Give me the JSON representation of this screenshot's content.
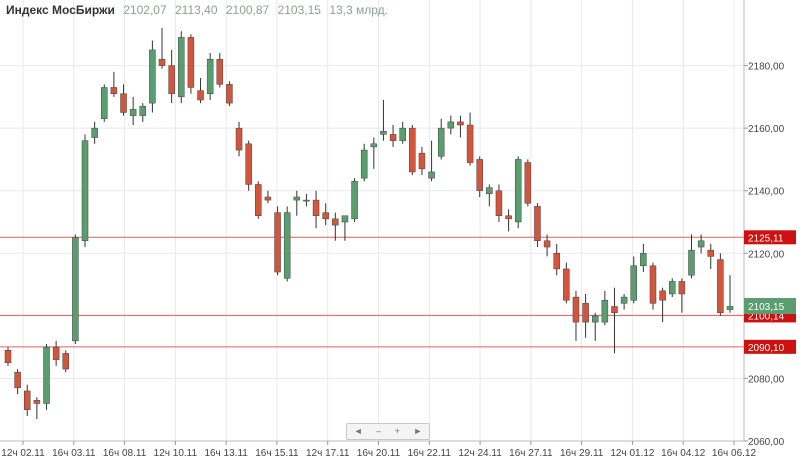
{
  "header": {
    "name": "Индекс МосБиржи",
    "open": "2102,07",
    "high": "2113,40",
    "low": "2100,87",
    "close": "2103,15",
    "volume": "13,3 млрд."
  },
  "navigator": {
    "left_icon": "◄",
    "zoom_out": "–",
    "zoom_in": "+",
    "right_icon": "►"
  },
  "colors": {
    "up": "#5a9e6f",
    "down": "#d2553c",
    "level_line": "#e06060",
    "level_label_bg": "#cc1111",
    "last_price_bg": "#5a9e6f",
    "grid": "#e8e8e8",
    "axis_text": "#444444"
  },
  "chart_data": {
    "type": "candlestick",
    "title": "Индекс МосБиржи",
    "ylim": [
      2060,
      2200
    ],
    "y_ticks": [
      "2060,00",
      "2080,00",
      "2100,00",
      "2120,00",
      "2140,00",
      "2160,00",
      "2180,00"
    ],
    "x_tick_labels": [
      "12ч 02.11",
      "16ч 03.11",
      "16ч 08.11",
      "12ч 10.11",
      "16ч 13.11",
      "16ч 15.11",
      "12ч 17.11",
      "16ч 20.11",
      "16ч 22.11",
      "12ч 24.11",
      "16ч 27.11",
      "16ч 29.11",
      "12ч 01.12",
      "16ч 04.12",
      "16ч 06.12"
    ],
    "grid": true,
    "horizontal_levels": [
      {
        "value": 2125.11,
        "label": "2125,11"
      },
      {
        "value": 2100.14,
        "label": "2100,14"
      },
      {
        "value": 2090.1,
        "label": "2090,10"
      }
    ],
    "last_price": {
      "value": 2103.15,
      "label": "2103,15"
    },
    "candles": [
      {
        "o": 2089,
        "h": 2090,
        "l": 2084,
        "c": 2085
      },
      {
        "o": 2082,
        "h": 2083,
        "l": 2075,
        "c": 2077
      },
      {
        "o": 2076,
        "h": 2078,
        "l": 2068,
        "c": 2070
      },
      {
        "o": 2073,
        "h": 2074,
        "l": 2067,
        "c": 2072
      },
      {
        "o": 2072,
        "h": 2091,
        "l": 2070,
        "c": 2090
      },
      {
        "o": 2090,
        "h": 2092,
        "l": 2084,
        "c": 2086
      },
      {
        "o": 2088,
        "h": 2089,
        "l": 2082,
        "c": 2083
      },
      {
        "o": 2092,
        "h": 2126,
        "l": 2091,
        "c": 2125
      },
      {
        "o": 2124,
        "h": 2158,
        "l": 2122,
        "c": 2156
      },
      {
        "o": 2157,
        "h": 2162,
        "l": 2155,
        "c": 2160
      },
      {
        "o": 2163,
        "h": 2174,
        "l": 2162,
        "c": 2173
      },
      {
        "o": 2173,
        "h": 2178,
        "l": 2170,
        "c": 2171
      },
      {
        "o": 2171,
        "h": 2174,
        "l": 2164,
        "c": 2165
      },
      {
        "o": 2164,
        "h": 2170,
        "l": 2161,
        "c": 2166
      },
      {
        "o": 2164,
        "h": 2168,
        "l": 2162,
        "c": 2167
      },
      {
        "o": 2168,
        "h": 2188,
        "l": 2165,
        "c": 2185
      },
      {
        "o": 2182,
        "h": 2192,
        "l": 2179,
        "c": 2180
      },
      {
        "o": 2180,
        "h": 2185,
        "l": 2168,
        "c": 2171
      },
      {
        "o": 2170,
        "h": 2191,
        "l": 2168,
        "c": 2189
      },
      {
        "o": 2189,
        "h": 2190,
        "l": 2171,
        "c": 2173
      },
      {
        "o": 2172,
        "h": 2176,
        "l": 2168,
        "c": 2169
      },
      {
        "o": 2171,
        "h": 2184,
        "l": 2169,
        "c": 2182
      },
      {
        "o": 2182,
        "h": 2184,
        "l": 2173,
        "c": 2174
      },
      {
        "o": 2174,
        "h": 2175,
        "l": 2167,
        "c": 2168
      },
      {
        "o": 2160,
        "h": 2162,
        "l": 2151,
        "c": 2153
      },
      {
        "o": 2155,
        "h": 2156,
        "l": 2140,
        "c": 2142
      },
      {
        "o": 2142,
        "h": 2143,
        "l": 2131,
        "c": 2132
      },
      {
        "o": 2138,
        "h": 2140,
        "l": 2136,
        "c": 2137
      },
      {
        "o": 2133,
        "h": 2135,
        "l": 2113,
        "c": 2114
      },
      {
        "o": 2112,
        "h": 2135,
        "l": 2111,
        "c": 2133
      },
      {
        "o": 2137,
        "h": 2140,
        "l": 2132,
        "c": 2138
      },
      {
        "o": 2137,
        "h": 2139,
        "l": 2135,
        "c": 2137
      },
      {
        "o": 2137,
        "h": 2140,
        "l": 2128,
        "c": 2132
      },
      {
        "o": 2133,
        "h": 2136,
        "l": 2129,
        "c": 2131
      },
      {
        "o": 2131,
        "h": 2133,
        "l": 2124,
        "c": 2129
      },
      {
        "o": 2130,
        "h": 2132,
        "l": 2124,
        "c": 2132
      },
      {
        "o": 2131,
        "h": 2144,
        "l": 2130,
        "c": 2143
      },
      {
        "o": 2144,
        "h": 2155,
        "l": 2143,
        "c": 2153
      },
      {
        "o": 2154,
        "h": 2157,
        "l": 2147,
        "c": 2155
      },
      {
        "o": 2158,
        "h": 2169,
        "l": 2156,
        "c": 2159
      },
      {
        "o": 2158,
        "h": 2161,
        "l": 2154,
        "c": 2156
      },
      {
        "o": 2156,
        "h": 2162,
        "l": 2155,
        "c": 2160
      },
      {
        "o": 2160,
        "h": 2161,
        "l": 2145,
        "c": 2146
      },
      {
        "o": 2152,
        "h": 2154,
        "l": 2145,
        "c": 2147
      },
      {
        "o": 2144,
        "h": 2156,
        "l": 2143,
        "c": 2146
      },
      {
        "o": 2151,
        "h": 2163,
        "l": 2150,
        "c": 2160
      },
      {
        "o": 2160,
        "h": 2164,
        "l": 2158,
        "c": 2162
      },
      {
        "o": 2162,
        "h": 2164,
        "l": 2157,
        "c": 2161
      },
      {
        "o": 2161,
        "h": 2165,
        "l": 2148,
        "c": 2149
      },
      {
        "o": 2150,
        "h": 2151,
        "l": 2138,
        "c": 2140
      },
      {
        "o": 2139,
        "h": 2142,
        "l": 2135,
        "c": 2141
      },
      {
        "o": 2140,
        "h": 2142,
        "l": 2130,
        "c": 2132
      },
      {
        "o": 2132,
        "h": 2134,
        "l": 2127,
        "c": 2131
      },
      {
        "o": 2130,
        "h": 2151,
        "l": 2128,
        "c": 2150
      },
      {
        "o": 2149,
        "h": 2150,
        "l": 2135,
        "c": 2136
      },
      {
        "o": 2135,
        "h": 2136,
        "l": 2122,
        "c": 2124
      },
      {
        "o": 2124,
        "h": 2126,
        "l": 2119,
        "c": 2122
      },
      {
        "o": 2120,
        "h": 2123,
        "l": 2113,
        "c": 2115
      },
      {
        "o": 2115,
        "h": 2117,
        "l": 2104,
        "c": 2105
      },
      {
        "o": 2106,
        "h": 2108,
        "l": 2092,
        "c": 2098
      },
      {
        "o": 2104,
        "h": 2107,
        "l": 2093,
        "c": 2098
      },
      {
        "o": 2098,
        "h": 2101,
        "l": 2092,
        "c": 2100
      },
      {
        "o": 2098,
        "h": 2108,
        "l": 2097,
        "c": 2105
      },
      {
        "o": 2103,
        "h": 2109,
        "l": 2088,
        "c": 2101
      },
      {
        "o": 2104,
        "h": 2107,
        "l": 2102,
        "c": 2106
      },
      {
        "o": 2105,
        "h": 2119,
        "l": 2104,
        "c": 2116
      },
      {
        "o": 2116,
        "h": 2123,
        "l": 2114,
        "c": 2120
      },
      {
        "o": 2116,
        "h": 2117,
        "l": 2102,
        "c": 2104
      },
      {
        "o": 2108,
        "h": 2109,
        "l": 2098,
        "c": 2105
      },
      {
        "o": 2107,
        "h": 2112,
        "l": 2106,
        "c": 2111
      },
      {
        "o": 2111,
        "h": 2112,
        "l": 2101,
        "c": 2107
      },
      {
        "o": 2113,
        "h": 2126,
        "l": 2112,
        "c": 2121
      },
      {
        "o": 2122,
        "h": 2126,
        "l": 2120,
        "c": 2124
      },
      {
        "o": 2121,
        "h": 2123,
        "l": 2115,
        "c": 2119
      },
      {
        "o": 2118,
        "h": 2120,
        "l": 2100,
        "c": 2101
      },
      {
        "o": 2102,
        "h": 2113,
        "l": 2101,
        "c": 2103
      }
    ]
  }
}
